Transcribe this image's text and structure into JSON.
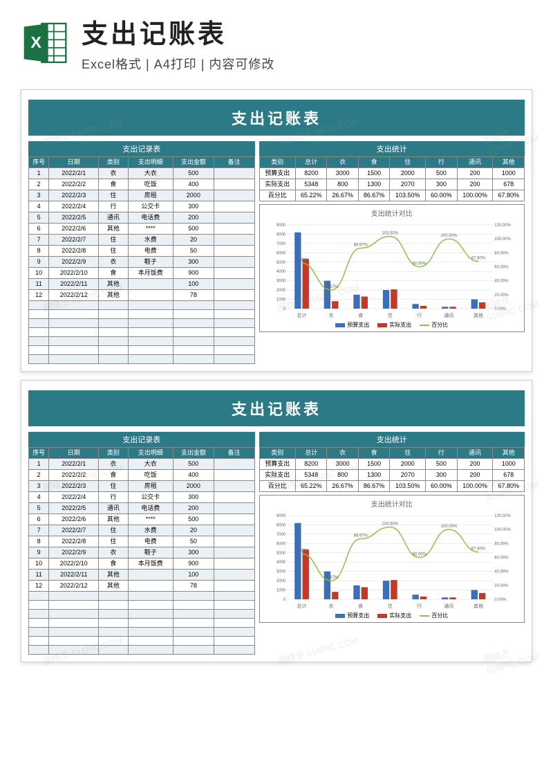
{
  "header": {
    "main_title": "支出记账表",
    "sub_title": "Excel格式 | A4打印 | 内容可修改"
  },
  "sheet": {
    "banner": "支出记账表",
    "records": {
      "title": "支出记录表",
      "columns": [
        "序号",
        "日期",
        "类别",
        "支出明细",
        "支出金额",
        "备注"
      ],
      "rows": [
        [
          "1",
          "2022/2/1",
          "衣",
          "大衣",
          "500",
          ""
        ],
        [
          "2",
          "2022/2/2",
          "食",
          "吃饭",
          "400",
          ""
        ],
        [
          "3",
          "2022/2/3",
          "住",
          "房租",
          "2000",
          ""
        ],
        [
          "4",
          "2022/2/4",
          "行",
          "公交卡",
          "300",
          ""
        ],
        [
          "5",
          "2022/2/5",
          "通讯",
          "电话费",
          "200",
          ""
        ],
        [
          "6",
          "2022/2/6",
          "其他",
          "****",
          "500",
          ""
        ],
        [
          "7",
          "2022/2/7",
          "住",
          "水费",
          "20",
          ""
        ],
        [
          "8",
          "2022/2/8",
          "住",
          "电费",
          "50",
          ""
        ],
        [
          "9",
          "2022/2/9",
          "衣",
          "鞋子",
          "300",
          ""
        ],
        [
          "10",
          "2022/2/10",
          "食",
          "本月饭费",
          "900",
          ""
        ],
        [
          "11",
          "2022/2/11",
          "其他",
          "",
          "100",
          ""
        ],
        [
          "12",
          "2022/2/12",
          "其他",
          "",
          "78",
          ""
        ]
      ],
      "empty_rows": 7
    },
    "stats": {
      "title": "支出统计",
      "columns": [
        "类别",
        "总计",
        "衣",
        "食",
        "住",
        "行",
        "通讯",
        "其他"
      ],
      "rows": [
        [
          "预算支出",
          "8200",
          "3000",
          "1500",
          "2000",
          "500",
          "200",
          "1000"
        ],
        [
          "实际支出",
          "5348",
          "800",
          "1300",
          "2070",
          "300",
          "200",
          "678"
        ],
        [
          "百分比",
          "65.22%",
          "26.67%",
          "86.67%",
          "103.50%",
          "60.00%",
          "100.00%",
          "67.80%"
        ]
      ]
    },
    "chart": {
      "title": "支出统计对比",
      "categories": [
        "总计",
        "衣",
        "食",
        "住",
        "行",
        "通讯",
        "其他"
      ],
      "budget": [
        8200,
        3000,
        1500,
        2000,
        500,
        200,
        1000
      ],
      "actual": [
        5348,
        800,
        1300,
        2070,
        300,
        200,
        678
      ],
      "percent": [
        65.22,
        26.67,
        86.67,
        103.5,
        60.0,
        100.0,
        67.8
      ],
      "y_left_max": 9000,
      "y_left_step": 1000,
      "y_right_max": 120,
      "y_right_step": 20,
      "bar_color_budget": "#3b6fb6",
      "bar_color_actual": "#c0392b",
      "line_color": "#8bc34a",
      "grid_color": "#d8d8d8",
      "text_color": "#666",
      "legend": [
        "预算支出",
        "实际支出",
        "百分比"
      ]
    }
  },
  "watermark": "图精灵 616PIC.COM"
}
